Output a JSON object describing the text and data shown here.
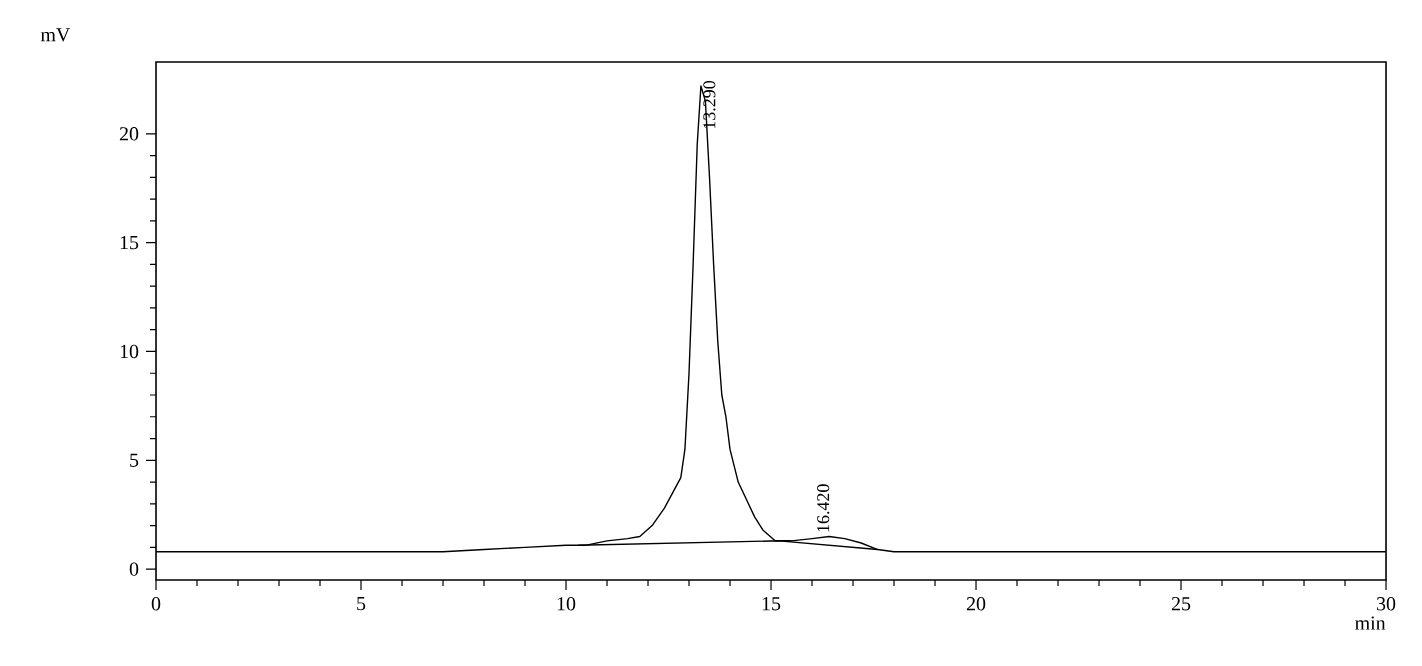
{
  "chart_data": {
    "type": "line",
    "xlabel": "min",
    "ylabel": "mV",
    "xlim": [
      0,
      30
    ],
    "ylim": [
      -0.5,
      23.3
    ],
    "xticks": [
      0,
      5,
      10,
      15,
      20,
      25,
      30
    ],
    "yticks": [
      0,
      5,
      10,
      15,
      20
    ],
    "marker": "none",
    "line_style": "solid",
    "series": [
      {
        "color": "#000000",
        "x": [
          0,
          5,
          7,
          8,
          9,
          10,
          10.5,
          11,
          11.5,
          11.8,
          12.1,
          12.4,
          12.6,
          12.8,
          12.9,
          13.0,
          13.1,
          13.2,
          13.29,
          13.4,
          13.5,
          13.6,
          13.7,
          13.8,
          13.9,
          14.0,
          14.2,
          14.4,
          14.6,
          14.8,
          15.1,
          15.5,
          16.0,
          16.42,
          16.8,
          17.2,
          17.6,
          18.0,
          18.5,
          20,
          25,
          30
        ],
        "values": [
          0.8,
          0.8,
          0.8,
          0.9,
          1.0,
          1.1,
          1.1,
          1.3,
          1.4,
          1.5,
          2.0,
          2.8,
          3.5,
          4.2,
          5.5,
          9,
          14,
          19.5,
          22.2,
          21.5,
          18,
          14,
          10.5,
          8,
          7,
          5.5,
          4.0,
          3.2,
          2.4,
          1.8,
          1.3,
          1.3,
          1.4,
          1.5,
          1.4,
          1.2,
          0.9,
          0.8,
          0.8,
          0.8,
          0.8,
          0.8
        ]
      },
      {
        "color": "#000000",
        "x": [
          10.3,
          15.2,
          17.6
        ],
        "values": [
          1.1,
          1.3,
          0.9
        ]
      }
    ],
    "annotations": [
      {
        "text": "13.290",
        "x": 13.29,
        "y": 22.2
      },
      {
        "text": "16.420",
        "x": 16.42,
        "y": 1.55
      }
    ]
  }
}
